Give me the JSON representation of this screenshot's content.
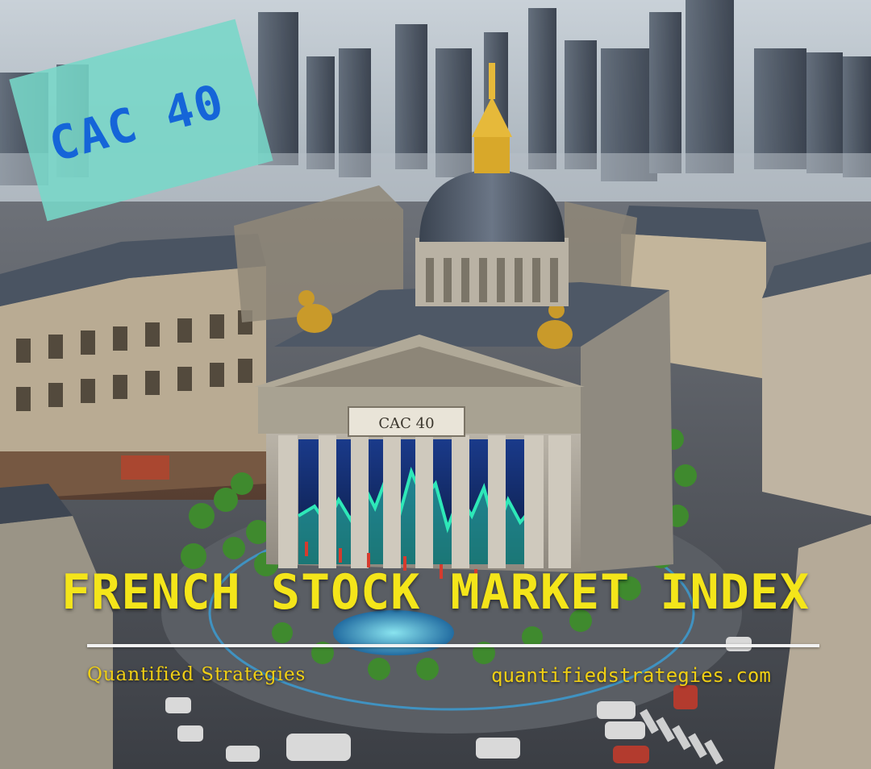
{
  "badge": {
    "text": "CAC 40"
  },
  "building": {
    "sign": "CAC 40"
  },
  "headline": "FRENCH STOCK MARKET INDEX",
  "footer": {
    "left": "Quantified Strategies",
    "right": "quantifiedstrategies.com"
  },
  "colors": {
    "headline": "#f4e51a",
    "footer_text": "#f0cf14",
    "badge_bg": "#78d7c8",
    "badge_text": "#1565d8",
    "chart_glow": "#2ee8b8"
  }
}
